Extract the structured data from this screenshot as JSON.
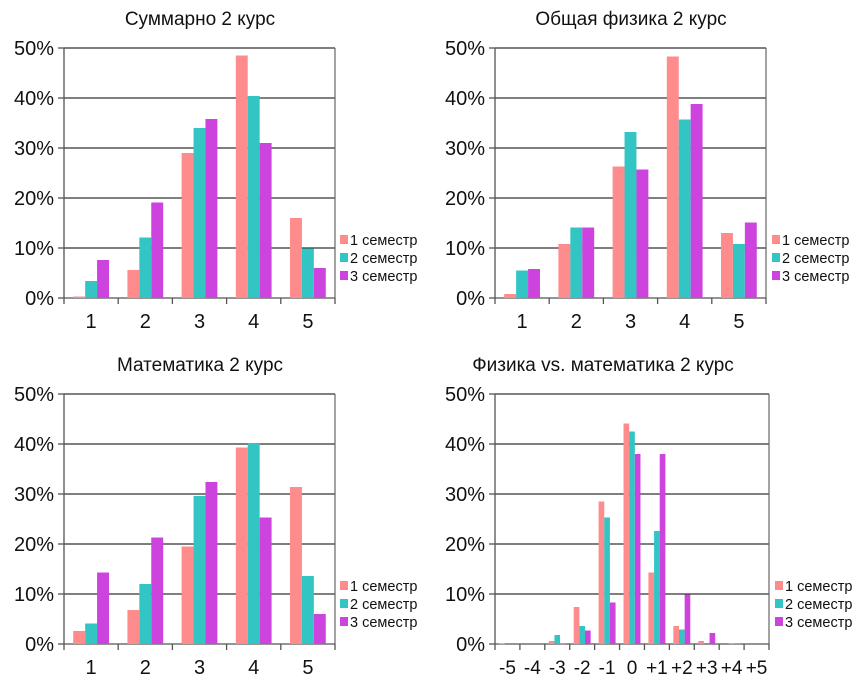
{
  "chart_data": [
    {
      "id": "summary",
      "type": "bar",
      "title": "Суммарно 2 курс",
      "xlabel": "",
      "ylabel": "",
      "ylim": [
        0,
        50
      ],
      "yticks": [
        "0%",
        "10%",
        "20%",
        "30%",
        "40%",
        "50%"
      ],
      "grid": true,
      "legend_position": "right-bottom",
      "categories": [
        "1",
        "2",
        "3",
        "4",
        "5"
      ],
      "series": [
        {
          "name": "1 семестр",
          "values": [
            0.3,
            5.6,
            29.0,
            48.5,
            16.0
          ]
        },
        {
          "name": "2 семестр",
          "values": [
            3.4,
            12.1,
            34.0,
            40.4,
            9.9
          ]
        },
        {
          "name": "3 семестр",
          "values": [
            7.6,
            19.1,
            35.8,
            31.0,
            6.0
          ]
        }
      ]
    },
    {
      "id": "physics",
      "type": "bar",
      "title": "Общая физика 2 курс",
      "xlabel": "",
      "ylabel": "",
      "ylim": [
        0,
        50
      ],
      "yticks": [
        "0%",
        "10%",
        "20%",
        "30%",
        "40%",
        "50%"
      ],
      "grid": true,
      "legend_position": "right-bottom",
      "categories": [
        "1",
        "2",
        "3",
        "4",
        "5"
      ],
      "series": [
        {
          "name": "1 семестр",
          "values": [
            0.8,
            10.8,
            26.3,
            48.3,
            13.0
          ]
        },
        {
          "name": "2 семестр",
          "values": [
            5.5,
            14.1,
            33.2,
            35.7,
            10.8
          ]
        },
        {
          "name": "3 семестр",
          "values": [
            5.8,
            14.1,
            25.7,
            38.8,
            15.1
          ]
        }
      ]
    },
    {
      "id": "math",
      "type": "bar",
      "title": "Математика 2 курс",
      "xlabel": "",
      "ylabel": "",
      "ylim": [
        0,
        50
      ],
      "yticks": [
        "0%",
        "10%",
        "20%",
        "30%",
        "40%",
        "50%"
      ],
      "grid": true,
      "legend_position": "right-bottom",
      "categories": [
        "1",
        "2",
        "3",
        "4",
        "5"
      ],
      "series": [
        {
          "name": "1 семестр",
          "values": [
            2.6,
            6.8,
            19.5,
            39.3,
            31.4
          ]
        },
        {
          "name": "2 семестр",
          "values": [
            4.1,
            12.0,
            29.6,
            40.2,
            13.6
          ]
        },
        {
          "name": "3 семестр",
          "values": [
            14.3,
            21.3,
            32.4,
            25.3,
            6.0
          ]
        }
      ]
    },
    {
      "id": "diff",
      "type": "bar",
      "title": "Физика vs. математика 2 курс",
      "xlabel": "",
      "ylabel": "",
      "ylim": [
        0,
        50
      ],
      "yticks": [
        "0%",
        "10%",
        "20%",
        "30%",
        "40%",
        "50%"
      ],
      "grid": true,
      "legend_position": "right-bottom",
      "categories": [
        "-5",
        "-4",
        "-3",
        "-2",
        "-1",
        "0",
        "+1",
        "+2",
        "+3",
        "+4",
        "+5"
      ],
      "series": [
        {
          "name": "1 семестр",
          "values": [
            0.1,
            0,
            0.6,
            7.4,
            28.5,
            44.1,
            14.3,
            3.6,
            0.6,
            0,
            0
          ]
        },
        {
          "name": "2 семестр",
          "values": [
            0,
            0,
            1.8,
            3.6,
            25.3,
            42.5,
            22.6,
            2.9,
            0,
            0.1,
            0
          ]
        },
        {
          "name": "3 семестр",
          "values": [
            0,
            0,
            0.1,
            2.7,
            8.3,
            38.0,
            38.0,
            9.9,
            2.2,
            0.1,
            0
          ]
        }
      ]
    }
  ],
  "colors": {
    "series": [
      "#FF8C8C",
      "#33C4C4",
      "#CC44DD"
    ],
    "grid": "#333333"
  }
}
